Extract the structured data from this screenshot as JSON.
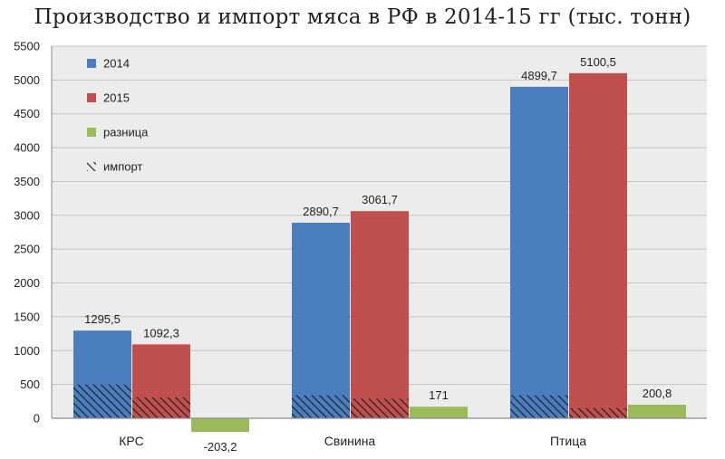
{
  "chart_data": {
    "type": "bar",
    "title": "Производство и импорт мяса в РФ в 2014-15 гг (тыс. тонн)",
    "categories": [
      "КРС",
      "Свинина",
      "Птица"
    ],
    "series": [
      {
        "name": "2014",
        "values": [
          1295.5,
          2890.7,
          4899.7
        ],
        "labels": [
          "1295,5",
          "2890,7",
          "4899,7"
        ],
        "import": [
          500,
          340,
          340
        ],
        "color": "#4a7ebf"
      },
      {
        "name": "2015",
        "values": [
          1092.3,
          3061.7,
          5100.5
        ],
        "labels": [
          "1092,3",
          "3061,7",
          "5100,5"
        ],
        "import": [
          310,
          290,
          150
        ],
        "color": "#c0504d"
      },
      {
        "name": "разница",
        "values": [
          -203.2,
          171,
          200.8
        ],
        "labels": [
          "-203,2",
          "171",
          "200,8"
        ],
        "color": "#9bbb59"
      }
    ],
    "hatch_legend": "импорт",
    "ylim": [
      0,
      5500
    ],
    "yticks": [
      0,
      500,
      1000,
      1500,
      2000,
      2500,
      3000,
      3500,
      4000,
      4500,
      5000,
      5500
    ],
    "grid": true,
    "legend_position": "top-left"
  }
}
